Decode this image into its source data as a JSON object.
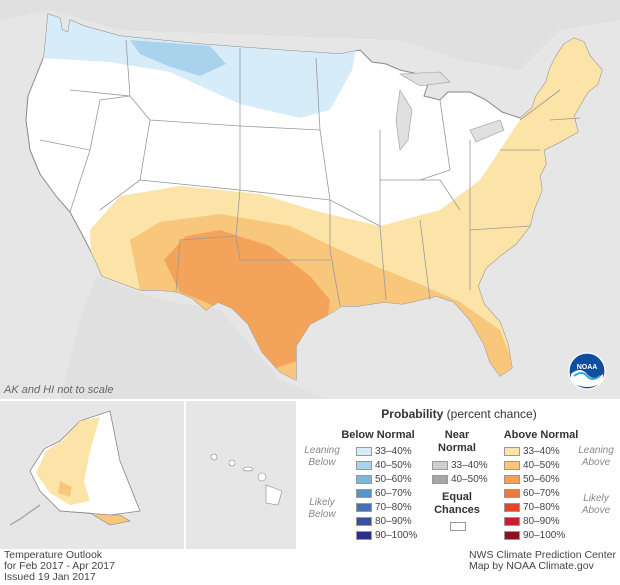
{
  "map": {
    "scale_note": "AK and HI not to scale",
    "logo_text": "NOAA",
    "colors": {
      "background": "#e6e6e6",
      "land": "#ffffff",
      "border": "#888888",
      "below_33_40": "#d6ecf8",
      "below_40_50": "#a9d2ec",
      "above_33_40": "#fce4a8",
      "above_40_50": "#f8c77c",
      "above_50_60": "#f3a35a"
    }
  },
  "legend": {
    "title_bold": "Probability",
    "title_rest": " (percent chance)",
    "below_header": "Below Normal",
    "near_header_line1": "Near",
    "near_header_line2": "Normal",
    "above_header": "Above Normal",
    "leaning_below_1": "Leaning",
    "leaning_below_2": "Below",
    "likely_below_1": "Likely",
    "likely_below_2": "Below",
    "leaning_above_1": "Leaning",
    "leaning_above_2": "Above",
    "likely_above_1": "Likely",
    "likely_above_2": "Above",
    "equal_line1": "Equal",
    "equal_line2": "Chances",
    "below_rows": [
      {
        "label": "33–40%",
        "color": "#d6ecf8"
      },
      {
        "label": "40–50%",
        "color": "#a9d2ec"
      },
      {
        "label": "50–60%",
        "color": "#7fb4dc"
      },
      {
        "label": "60–70%",
        "color": "#5a93c8"
      },
      {
        "label": "70–80%",
        "color": "#4771b2"
      },
      {
        "label": "80–90%",
        "color": "#3a509c"
      },
      {
        "label": "90–100%",
        "color": "#2c2f87"
      }
    ],
    "near_rows": [
      {
        "label": "33–40%",
        "color": "#cfcfcf"
      },
      {
        "label": "40–50%",
        "color": "#a5a5a5"
      }
    ],
    "above_rows": [
      {
        "label": "33–40%",
        "color": "#fce4a8"
      },
      {
        "label": "40–50%",
        "color": "#f8c77c"
      },
      {
        "label": "50–60%",
        "color": "#f3a35a"
      },
      {
        "label": "60–70%",
        "color": "#ec7a3d"
      },
      {
        "label": "70–80%",
        "color": "#e0492c"
      },
      {
        "label": "80–90%",
        "color": "#c8202a"
      },
      {
        "label": "90–100%",
        "color": "#8e1322"
      }
    ]
  },
  "footer": {
    "left_line1": "Temperature Outlook",
    "left_line2": "for Feb 2017 - Apr 2017",
    "left_line3": "Issued 19 Jan 2017",
    "right_line1": "NWS Climate Prediction Center",
    "right_line2": "Map by NOAA Climate.gov"
  }
}
